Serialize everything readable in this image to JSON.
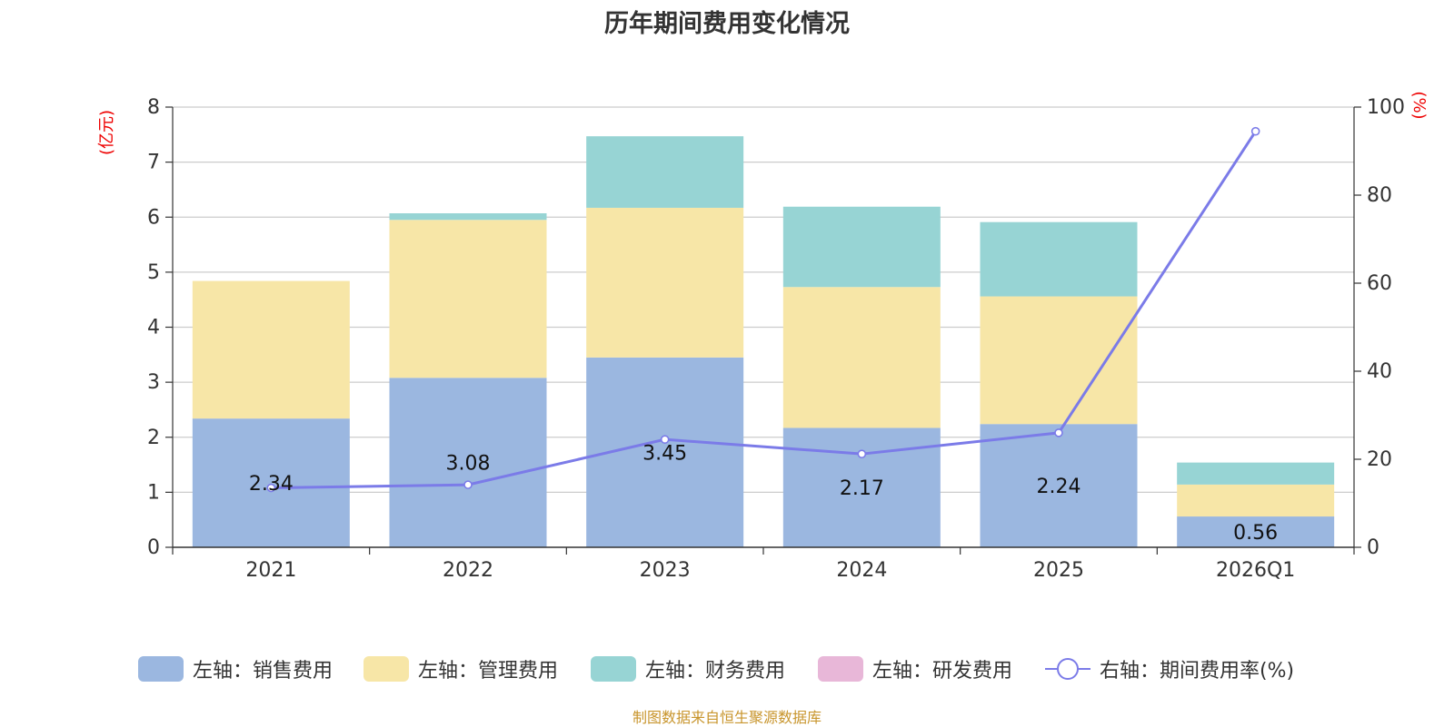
{
  "title": "历年期间费用变化情况",
  "source": "制图数据来自恒生聚源数据库",
  "colors": {
    "sales": "#9bb7e0",
    "admin": "#f7e6a7",
    "finance": "#97d4d4",
    "rd": "#e8b7d8",
    "rate": "#7b7be8",
    "axis_unit": "#ee0000",
    "grid": "#cccccc",
    "text": "#333333"
  },
  "legend": [
    {
      "key": "sales",
      "label": "左轴：销售费用"
    },
    {
      "key": "admin",
      "label": "左轴：管理费用"
    },
    {
      "key": "finance",
      "label": "左轴：财务费用"
    },
    {
      "key": "rd",
      "label": "左轴：研发费用"
    },
    {
      "key": "rate",
      "label": "右轴：期间费用率(%)"
    }
  ],
  "chart_data": {
    "type": "bar",
    "stacked": true,
    "title": "历年期间费用变化情况",
    "categories": [
      "2021",
      "2022",
      "2023",
      "2024",
      "2025",
      "2026Q1"
    ],
    "left_axis": {
      "unit": "(亿元)",
      "ylim": [
        0,
        8
      ],
      "ticks": [
        0,
        1,
        2,
        3,
        4,
        5,
        6,
        7,
        8
      ]
    },
    "right_axis": {
      "unit": "(%)",
      "ylim": [
        0,
        100
      ],
      "ticks": [
        0,
        20,
        40,
        60,
        80,
        100
      ]
    },
    "series": [
      {
        "name": "左轴：销售费用",
        "key": "sales",
        "axis": "left",
        "values": [
          2.34,
          3.08,
          3.45,
          2.17,
          2.24,
          0.56
        ],
        "labels": [
          "2.34",
          "3.08",
          "3.45",
          "2.17",
          "2.24",
          "0.56"
        ]
      },
      {
        "name": "左轴：管理费用",
        "key": "admin",
        "axis": "left",
        "values": [
          2.5,
          2.87,
          2.72,
          2.56,
          2.32,
          0.58
        ]
      },
      {
        "name": "左轴：财务费用",
        "key": "finance",
        "axis": "left",
        "values": [
          0,
          0.12,
          1.3,
          1.46,
          1.35,
          0.4
        ]
      },
      {
        "name": "左轴：研发费用",
        "key": "rd",
        "axis": "left",
        "values": [
          0,
          0,
          0,
          0,
          0,
          0
        ]
      },
      {
        "name": "右轴：期间费用率(%)",
        "key": "rate",
        "axis": "right",
        "type": "line",
        "values": [
          13.5,
          14.2,
          24.5,
          21.2,
          26.0,
          94.5
        ]
      }
    ],
    "grid": true,
    "legend_position": "bottom"
  }
}
